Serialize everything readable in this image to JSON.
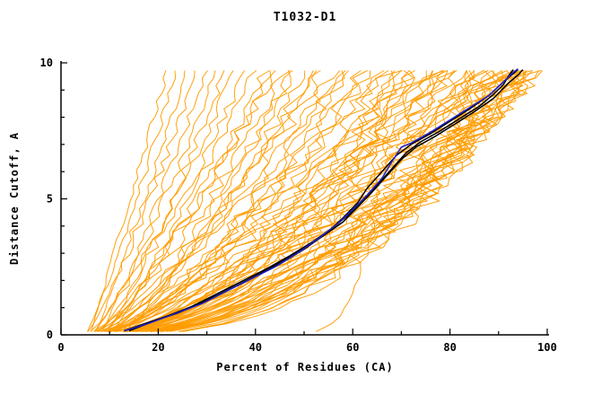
{
  "chart_data": {
    "type": "line",
    "title": "T1032-D1",
    "xlabel": "Percent of Residues (CA)",
    "ylabel": "Distance Cutoff, A",
    "xlim": [
      0,
      100
    ],
    "ylim": [
      0,
      10
    ],
    "xticks": [
      0,
      20,
      40,
      60,
      80,
      100
    ],
    "yticks": [
      0,
      5,
      10
    ],
    "x_minor_step": 10,
    "y_minor_step": 1,
    "grid": false,
    "legend": "none",
    "colors": {
      "ensemble": "#ff9c00",
      "model_black": "#000000",
      "model_blue": "#2222cc",
      "axis": "#000000"
    },
    "ensemble_format": [
      "start_percent_at_cutoff_0",
      "end_percent_at_cutoff_10",
      "shape_exponent"
    ],
    "ensemble_curves": [
      [
        6,
        22,
        1.0
      ],
      [
        5,
        24,
        1.15
      ],
      [
        7,
        26,
        1.05
      ],
      [
        5,
        28,
        1.2
      ],
      [
        8,
        30,
        1.1
      ],
      [
        6,
        32,
        1.25
      ],
      [
        9,
        34,
        1.15
      ],
      [
        5,
        36,
        1.3
      ],
      [
        7,
        38,
        1.2
      ],
      [
        10,
        40,
        1.1
      ],
      [
        6,
        42,
        1.35
      ],
      [
        8,
        44,
        1.2
      ],
      [
        5,
        46,
        1.4
      ],
      [
        9,
        48,
        1.3
      ],
      [
        7,
        50,
        1.5
      ],
      [
        11,
        52,
        1.25
      ],
      [
        6,
        54,
        1.45
      ],
      [
        8,
        56,
        1.6
      ],
      [
        5,
        58,
        1.35
      ],
      [
        10,
        60,
        1.5
      ],
      [
        7,
        62,
        1.4
      ],
      [
        6,
        64,
        1.55
      ],
      [
        9,
        66,
        1.7
      ],
      [
        5,
        68,
        1.5
      ],
      [
        8,
        70,
        1.8
      ],
      [
        12,
        72,
        1.6
      ],
      [
        6,
        74,
        1.9
      ],
      [
        10,
        76,
        1.7
      ],
      [
        7,
        78,
        1.85
      ],
      [
        5,
        80,
        1.75
      ],
      [
        8,
        82,
        1.9
      ],
      [
        6,
        84,
        2.0
      ],
      [
        11,
        86,
        1.8
      ],
      [
        5,
        88,
        2.1
      ],
      [
        9,
        90,
        1.95
      ],
      [
        7,
        92,
        2.2
      ],
      [
        6,
        94,
        2.05
      ],
      [
        10,
        95,
        1.9
      ],
      [
        5,
        96,
        2.3
      ],
      [
        8,
        97,
        2.1
      ],
      [
        7,
        88,
        1.7
      ],
      [
        9,
        93,
        1.85
      ],
      [
        6,
        91,
        2.4
      ],
      [
        12,
        89,
        2.0
      ],
      [
        5,
        94,
        1.8
      ],
      [
        8,
        96,
        2.2
      ],
      [
        10,
        92,
        2.5
      ],
      [
        6,
        87,
        1.65
      ],
      [
        7,
        95,
        2.35
      ],
      [
        9,
        97,
        1.95
      ],
      [
        5,
        90,
        2.6
      ],
      [
        11,
        93,
        2.15
      ],
      [
        6,
        96,
        1.75
      ],
      [
        8,
        94,
        2.45
      ],
      [
        7,
        91,
        2.0
      ],
      [
        13,
        95,
        2.3
      ],
      [
        5,
        92,
        1.9
      ],
      [
        9,
        96,
        2.55
      ],
      [
        6,
        89,
        2.2
      ],
      [
        10,
        97,
        2.0
      ],
      [
        7,
        70,
        1.45
      ],
      [
        9,
        75,
        1.6
      ],
      [
        5,
        73,
        1.7
      ],
      [
        11,
        77,
        1.55
      ],
      [
        6,
        81,
        1.65
      ],
      [
        8,
        83,
        1.75
      ],
      [
        12,
        85,
        1.6
      ],
      [
        5,
        79,
        1.5
      ],
      [
        9,
        84,
        1.8
      ],
      [
        7,
        86,
        1.7
      ],
      [
        6,
        66,
        1.3
      ],
      [
        10,
        69,
        1.55
      ],
      [
        8,
        72,
        1.4
      ],
      [
        5,
        76,
        1.62
      ],
      [
        11,
        80,
        1.48
      ],
      [
        7,
        63,
        1.52
      ],
      [
        9,
        58,
        1.42
      ],
      [
        6,
        53,
        1.3
      ],
      [
        12,
        48,
        1.22
      ],
      [
        8,
        44,
        1.18
      ],
      [
        38,
        68,
        6.0
      ]
    ],
    "highlight_curves": [
      {
        "name": "model-black-1",
        "color": "#000000",
        "points": [
          [
            13,
            0.15
          ],
          [
            17,
            0.4
          ],
          [
            22,
            0.7
          ],
          [
            27,
            1.05
          ],
          [
            32,
            1.5
          ],
          [
            37,
            1.95
          ],
          [
            42,
            2.4
          ],
          [
            47,
            2.9
          ],
          [
            52,
            3.45
          ],
          [
            56,
            3.95
          ],
          [
            59,
            4.4
          ],
          [
            62,
            4.95
          ],
          [
            65,
            5.5
          ],
          [
            68,
            6.1
          ],
          [
            71,
            6.7
          ],
          [
            74,
            7.1
          ],
          [
            78,
            7.5
          ],
          [
            82,
            7.95
          ],
          [
            86,
            8.4
          ],
          [
            89,
            8.85
          ],
          [
            91,
            9.2
          ],
          [
            92,
            9.5
          ],
          [
            93,
            9.75
          ]
        ]
      },
      {
        "name": "model-black-2",
        "color": "#000000",
        "points": [
          [
            14,
            0.15
          ],
          [
            19,
            0.5
          ],
          [
            25,
            0.9
          ],
          [
            31,
            1.35
          ],
          [
            36,
            1.8
          ],
          [
            41,
            2.25
          ],
          [
            46,
            2.75
          ],
          [
            51,
            3.3
          ],
          [
            55,
            3.8
          ],
          [
            58,
            4.3
          ],
          [
            61,
            4.85
          ],
          [
            63,
            5.4
          ],
          [
            66,
            6.0
          ],
          [
            69,
            6.6
          ],
          [
            72,
            7.0
          ],
          [
            76,
            7.4
          ],
          [
            80,
            7.85
          ],
          [
            84,
            8.3
          ],
          [
            88,
            8.8
          ],
          [
            91,
            9.3
          ],
          [
            93,
            9.6
          ],
          [
            94,
            9.75
          ]
        ]
      },
      {
        "name": "model-black-3",
        "color": "#000000",
        "points": [
          [
            13,
            0.15
          ],
          [
            18,
            0.45
          ],
          [
            24,
            0.8
          ],
          [
            30,
            1.25
          ],
          [
            35,
            1.7
          ],
          [
            40,
            2.15
          ],
          [
            45,
            2.6
          ],
          [
            50,
            3.15
          ],
          [
            54,
            3.65
          ],
          [
            58,
            4.15
          ],
          [
            61,
            4.7
          ],
          [
            64,
            5.25
          ],
          [
            67,
            5.85
          ],
          [
            70,
            6.45
          ],
          [
            73,
            6.9
          ],
          [
            77,
            7.3
          ],
          [
            81,
            7.75
          ],
          [
            85,
            8.2
          ],
          [
            89,
            8.7
          ],
          [
            92,
            9.25
          ],
          [
            94,
            9.55
          ],
          [
            95,
            9.75
          ]
        ]
      },
      {
        "name": "model-blue",
        "color": "#2222cc",
        "points": [
          [
            13,
            0.15
          ],
          [
            18,
            0.42
          ],
          [
            23,
            0.75
          ],
          [
            29,
            1.15
          ],
          [
            34,
            1.6
          ],
          [
            39,
            2.05
          ],
          [
            44,
            2.5
          ],
          [
            49,
            3.05
          ],
          [
            53,
            3.55
          ],
          [
            57,
            4.1
          ],
          [
            60,
            4.6
          ],
          [
            63,
            5.15
          ],
          [
            66,
            5.75
          ],
          [
            68,
            6.35
          ],
          [
            70,
            6.9
          ],
          [
            72,
            7.05
          ],
          [
            76,
            7.45
          ],
          [
            80,
            7.9
          ],
          [
            84,
            8.35
          ],
          [
            88,
            8.8
          ],
          [
            91,
            9.3
          ],
          [
            93,
            9.65
          ],
          [
            94,
            9.78
          ]
        ]
      }
    ]
  }
}
